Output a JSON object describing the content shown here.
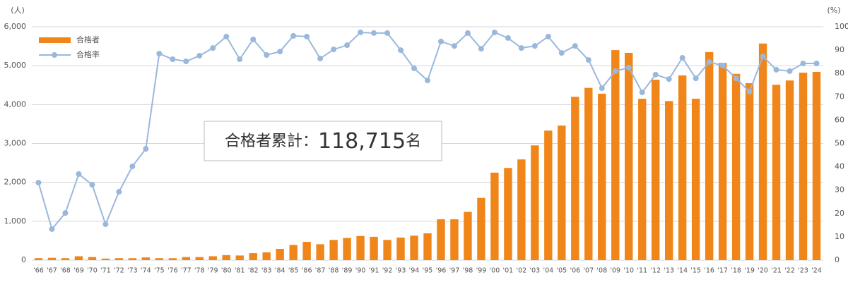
{
  "chart_data": {
    "type": "bar-line",
    "y_unit_label": "(人)",
    "y2_unit_label": "(%)",
    "annotation": {
      "label": "合格者累計：",
      "value": "118,715",
      "unit": "名"
    },
    "categories": [
      "'66",
      "'67",
      "'68",
      "'69",
      "'70",
      "'71",
      "'72",
      "'73",
      "'74",
      "'75",
      "'76",
      "'77",
      "'78",
      "'79",
      "'80",
      "'81",
      "'82",
      "'83",
      "'84",
      "'85",
      "'86",
      "'87",
      "'88",
      "'89",
      "'90",
      "'91",
      "'92",
      "'93",
      "'94",
      "'95",
      "'96",
      "'97",
      "'98",
      "'99",
      "'00",
      "'01",
      "'02",
      "'03",
      "'04",
      "'05",
      "'06",
      "'07",
      "'08",
      "'09",
      "'10",
      "'11",
      "'12",
      "'13",
      "'14",
      "'15",
      "'16",
      "'17",
      "'18",
      "'19",
      "'20",
      "'21",
      "'22",
      "'23",
      "'24"
    ],
    "series": [
      {
        "name": "合格者",
        "type": "bar",
        "color": "#f0861a",
        "values": [
          50,
          60,
          50,
          100,
          80,
          40,
          50,
          50,
          70,
          50,
          50,
          80,
          80,
          100,
          130,
          120,
          180,
          200,
          290,
          390,
          470,
          410,
          520,
          570,
          620,
          600,
          520,
          580,
          630,
          690,
          1050,
          1050,
          1240,
          1600,
          2250,
          2370,
          2590,
          2950,
          3330,
          3460,
          4200,
          4430,
          4280,
          5400,
          5330,
          4150,
          4640,
          4090,
          4750,
          4150,
          5350,
          5070,
          4790,
          4550,
          5570,
          4510,
          4620,
          4820,
          4840
        ]
      },
      {
        "name": "合格率",
        "type": "line",
        "axis": "y2",
        "color": "#9ab8dc",
        "values": [
          33.2,
          13.3,
          20.2,
          36.9,
          32.3,
          15.4,
          29.3,
          40.2,
          47.7,
          88.5,
          86.1,
          85.2,
          87.6,
          90.9,
          95.8,
          86.1,
          94.6,
          87.9,
          89.4,
          96.1,
          95.8,
          86.4,
          90.3,
          92.1,
          97.6,
          97.3,
          97.3,
          90,
          82.2,
          77,
          93.7,
          91.8,
          97.3,
          90.6,
          97.6,
          95.2,
          90.9,
          91.8,
          95.8,
          88.8,
          91.8,
          85.8,
          73.7,
          81,
          82.5,
          71.9,
          79.5,
          77.6,
          86.7,
          77.9,
          84.9,
          83.4,
          77.9,
          72.2,
          87.3,
          81.6,
          81,
          84.3,
          84.3
        ]
      }
    ],
    "ylim": [
      0,
      6000
    ],
    "yticks": [
      0,
      {
        "value": 1000,
        "label": "1,000"
      },
      {
        "value": 2000,
        "label": "2,000"
      },
      {
        "value": 3000,
        "label": "3,000"
      },
      {
        "value": 4000,
        "label": "4,000"
      },
      {
        "value": 5000,
        "label": "5,000"
      },
      {
        "value": 6000,
        "label": "6,000"
      }
    ],
    "y2lim": [
      0,
      100
    ],
    "y2ticks": [
      0,
      10,
      20,
      30,
      40,
      50,
      60,
      70,
      80,
      90,
      100
    ],
    "grid": true,
    "legend": "top-left"
  }
}
